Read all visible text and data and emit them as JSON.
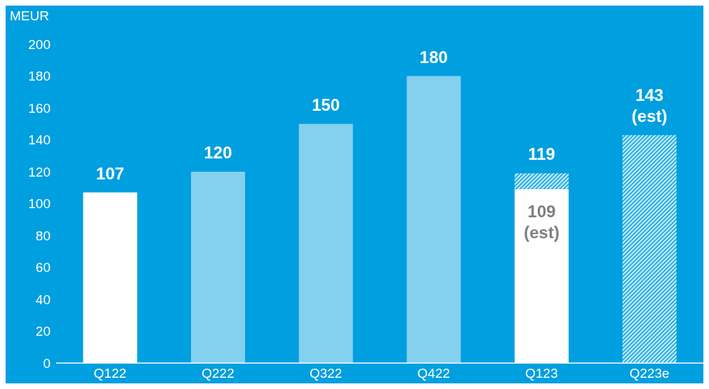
{
  "chart_data": {
    "type": "bar",
    "ylabel": "MEUR",
    "categories": [
      "Q122",
      "Q222",
      "Q322",
      "Q422",
      "Q123",
      "Q223e"
    ],
    "stacked": true,
    "series": [
      {
        "colors": [
          "#ffffff",
          "#84d0ef",
          "#84d0ef",
          "#84d0ef",
          "#ffffff",
          null
        ],
        "values": [
          107,
          120,
          150,
          180,
          109,
          null
        ],
        "value_labels": [
          null,
          null,
          null,
          null,
          "109 (est)",
          null
        ]
      },
      {
        "color": "#c8ecfa",
        "values": [
          null,
          null,
          null,
          null,
          10,
          143
        ]
      }
    ],
    "totals": [
      "107",
      "120",
      "150",
      "180",
      "119",
      "143 (est)"
    ],
    "ylim": [
      0,
      200
    ],
    "yticks": [
      0,
      20,
      40,
      60,
      80,
      100,
      120,
      140,
      160,
      180,
      200
    ]
  }
}
